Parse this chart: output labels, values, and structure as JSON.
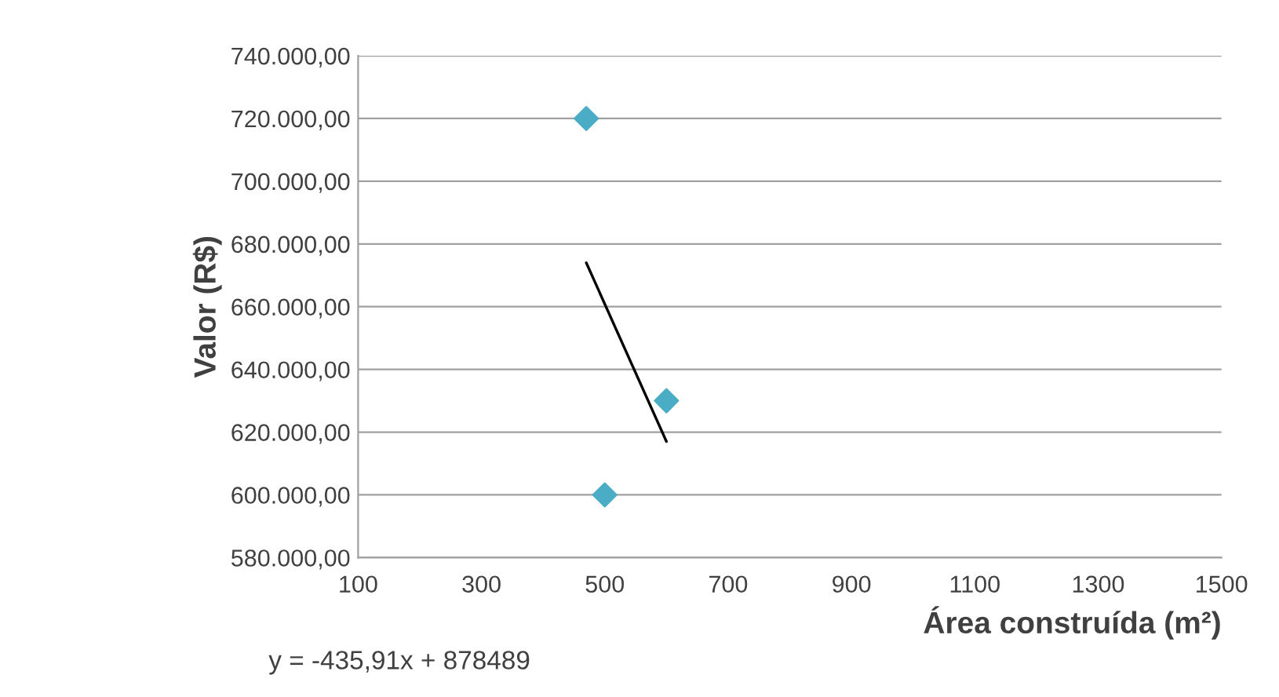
{
  "chart_data": {
    "type": "scatter",
    "xlabel": "Área construída (m²)",
    "ylabel": "Valor (R$)",
    "annotations": [
      "y = -435,91x + 878489"
    ],
    "series": [
      {
        "color": "#4bacc6",
        "marker": "diamond",
        "x": [
          470,
          500,
          600
        ],
        "values": [
          720000,
          600000,
          630000
        ]
      },
      {
        "type": "line",
        "color": "#000000",
        "marker": "none",
        "line_style": "solid",
        "x": [
          470,
          600
        ],
        "values": [
          674000,
          617000
        ]
      }
    ],
    "xlim": [
      100,
      1500
    ],
    "xticks": [
      100,
      300,
      500,
      700,
      900,
      1100,
      1300,
      1500
    ],
    "ylim": [
      580000,
      740000
    ],
    "yticks": [
      {
        "value": 580000,
        "label": "580.000,00"
      },
      {
        "value": 600000,
        "label": "600.000,00"
      },
      {
        "value": 620000,
        "label": "620.000,00"
      },
      {
        "value": 640000,
        "label": "640.000,00"
      },
      {
        "value": 660000,
        "label": "660.000,00"
      },
      {
        "value": 680000,
        "label": "680.000,00"
      },
      {
        "value": 700000,
        "label": "700.000,00"
      },
      {
        "value": 720000,
        "label": "720.000,00"
      },
      {
        "value": 740000,
        "label": "740.000,00"
      }
    ],
    "grid": "y",
    "legend": false
  }
}
